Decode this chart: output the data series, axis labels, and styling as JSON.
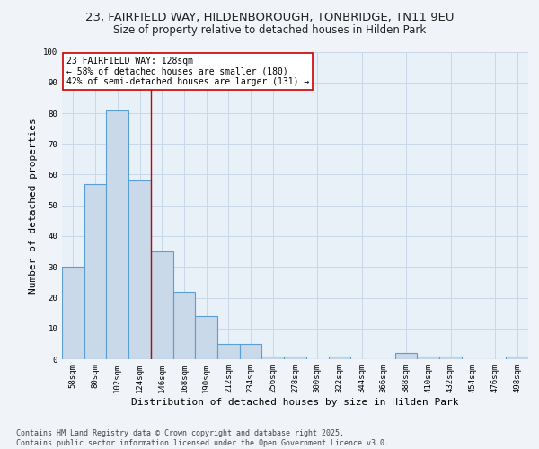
{
  "title_line1": "23, FAIRFIELD WAY, HILDENBOROUGH, TONBRIDGE, TN11 9EU",
  "title_line2": "Size of property relative to detached houses in Hilden Park",
  "xlabel": "Distribution of detached houses by size in Hilden Park",
  "ylabel": "Number of detached properties",
  "categories": [
    "58sqm",
    "80sqm",
    "102sqm",
    "124sqm",
    "146sqm",
    "168sqm",
    "190sqm",
    "212sqm",
    "234sqm",
    "256sqm",
    "278sqm",
    "300sqm",
    "322sqm",
    "344sqm",
    "366sqm",
    "388sqm",
    "410sqm",
    "432sqm",
    "454sqm",
    "476sqm",
    "498sqm"
  ],
  "values": [
    30,
    57,
    81,
    58,
    35,
    22,
    14,
    5,
    5,
    1,
    1,
    0,
    1,
    0,
    0,
    2,
    1,
    1,
    0,
    0,
    1
  ],
  "bar_color": "#c9d9ea",
  "bar_edge_color": "#5a9fd4",
  "bar_linewidth": 0.8,
  "grid_color": "#c8d8e8",
  "annotation_line1": "23 FAIRFIELD WAY: 128sqm",
  "annotation_line2": "← 58% of detached houses are smaller (180)",
  "annotation_line3": "42% of semi-detached houses are larger (131) →",
  "red_line_x": 3.5,
  "red_line_color": "#cc0000",
  "footnote": "Contains HM Land Registry data © Crown copyright and database right 2025.\nContains public sector information licensed under the Open Government Licence v3.0.",
  "ylim": [
    0,
    100
  ],
  "yticks": [
    0,
    10,
    20,
    30,
    40,
    50,
    60,
    70,
    80,
    90,
    100
  ],
  "fig_bg_color": "#f0f4f8",
  "plot_bg_color": "#e8f0f8",
  "title_fontsize": 9.5,
  "subtitle_fontsize": 8.5,
  "axis_label_fontsize": 8,
  "tick_fontsize": 6.5,
  "annotation_fontsize": 7,
  "footnote_fontsize": 6
}
